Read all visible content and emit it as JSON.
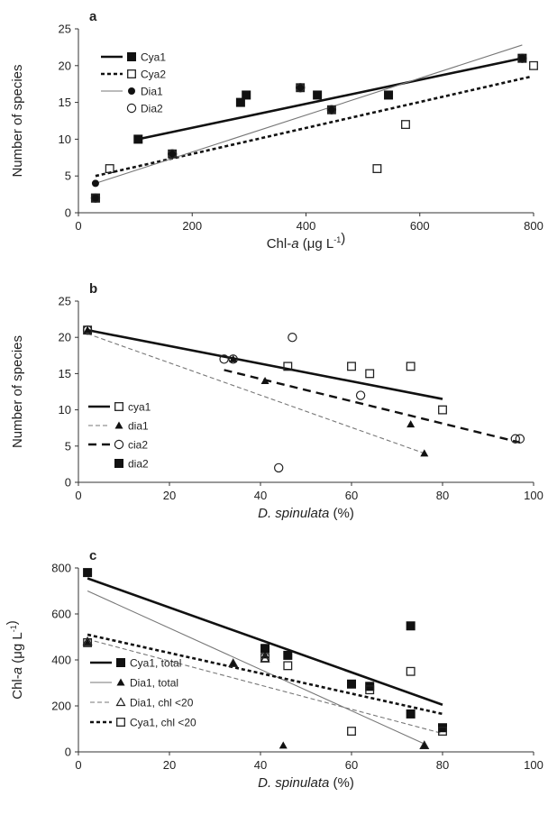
{
  "chart_data": [
    {
      "panel": "a",
      "type": "scatter",
      "xlabel": "Chl-a (μg L⁻¹)",
      "ylabel": "Number of species",
      "xlim": [
        0,
        800
      ],
      "ylim": [
        0,
        25
      ],
      "xticks": [
        0,
        200,
        400,
        600,
        800
      ],
      "yticks": [
        0,
        5,
        10,
        15,
        20,
        25
      ],
      "legend_position": "top-left",
      "series": [
        {
          "name": "Cya1",
          "marker": "filled-square",
          "line": "solid-thick",
          "x": [
            30,
            105,
            285,
            295,
            420,
            545,
            780
          ],
          "y": [
            2,
            10,
            15,
            16,
            16,
            16,
            21
          ],
          "fit": [
            [
              105,
              10
            ],
            [
              780,
              21
            ]
          ]
        },
        {
          "name": "Cya2",
          "marker": "open-square",
          "line": "dotted-thick",
          "x": [
            30,
            55,
            165,
            390,
            445,
            525,
            575,
            800
          ],
          "y": [
            2,
            6,
            8,
            17,
            14,
            6,
            12,
            20
          ],
          "fit": [
            [
              30,
              5
            ],
            [
              795,
              18.5
            ]
          ]
        },
        {
          "name": "Dia1",
          "marker": "filled-circle",
          "line": "solid-thin",
          "x": [
            30,
            165,
            390,
            445,
            780
          ],
          "y": [
            4,
            8,
            17,
            14,
            21
          ],
          "fit": [
            [
              30,
              4
            ],
            [
              780,
              22.8
            ]
          ]
        },
        {
          "name": "Dia2",
          "marker": "open-circle",
          "line": "none",
          "x": [
            30,
            165,
            390,
            445,
            780
          ],
          "y": [
            2,
            8,
            17,
            14,
            21
          ]
        }
      ]
    },
    {
      "panel": "b",
      "type": "scatter",
      "xlabel": "D. spinulata (%)",
      "ylabel": "Number of species",
      "xlim": [
        0,
        100
      ],
      "ylim": [
        0,
        25
      ],
      "xticks": [
        0,
        20,
        40,
        60,
        80,
        100
      ],
      "yticks": [
        0,
        5,
        10,
        15,
        20,
        25
      ],
      "legend_position": "bottom-left",
      "series": [
        {
          "name": "cya1",
          "marker": "open-square",
          "line": "solid-thick",
          "x": [
            2,
            46,
            60,
            64,
            73,
            80
          ],
          "y": [
            21,
            16,
            16,
            15,
            16,
            10
          ],
          "fit": [
            [
              2,
              21
            ],
            [
              80,
              11.5
            ]
          ]
        },
        {
          "name": "dia1",
          "marker": "filled-triangle",
          "line": "dashed-thin",
          "x": [
            2,
            34,
            41,
            73,
            76
          ],
          "y": [
            21,
            17,
            14,
            8,
            4
          ],
          "fit": [
            [
              2,
              20.5
            ],
            [
              76,
              4
            ]
          ]
        },
        {
          "name": "cia2",
          "marker": "open-circle",
          "line": "dashed-thick",
          "x": [
            2,
            32,
            34,
            44,
            47,
            62,
            96,
            97
          ],
          "y": [
            21,
            17,
            17,
            2,
            20,
            12,
            6,
            6
          ],
          "fit": [
            [
              32,
              15.5
            ],
            [
              97,
              5.5
            ]
          ]
        },
        {
          "name": "dia2",
          "marker": "filled-square",
          "line": "none",
          "x": [],
          "y": []
        }
      ]
    },
    {
      "panel": "c",
      "type": "scatter",
      "xlabel": "D. spinulata (%)",
      "ylabel": "Chl-a (μg L⁻¹)",
      "xlim": [
        0,
        100
      ],
      "ylim": [
        0,
        800
      ],
      "xticks": [
        0,
        20,
        40,
        60,
        80,
        100
      ],
      "yticks": [
        0,
        200,
        400,
        600,
        800
      ],
      "legend_position": "bottom-left",
      "series": [
        {
          "name": "Cya1, total",
          "marker": "filled-square",
          "line": "solid-thick",
          "x": [
            2,
            41,
            46,
            60,
            64,
            73,
            73,
            80
          ],
          "y": [
            780,
            450,
            420,
            295,
            285,
            165,
            548,
            105
          ],
          "fit": [
            [
              2,
              755
            ],
            [
              80,
              205
            ]
          ]
        },
        {
          "name": "Dia1, total",
          "marker": "filled-triangle",
          "line": "solid-thin",
          "x": [
            2,
            34,
            41,
            45,
            76
          ],
          "y": [
            475,
            385,
            420,
            28,
            28
          ],
          "fit": [
            [
              2,
              700
            ],
            [
              76,
              35
            ]
          ]
        },
        {
          "name": "Dia1, chl <20",
          "marker": "open-triangle",
          "line": "dashed-thin",
          "x": [
            2,
            34,
            41,
            76
          ],
          "y": [
            480,
            385,
            405,
            28
          ],
          "fit": [
            [
              2,
              490
            ],
            [
              80,
              80
            ]
          ]
        },
        {
          "name": "Cya1, chl <20",
          "marker": "open-square",
          "line": "dotted-thick",
          "x": [
            2,
            41,
            46,
            60,
            64,
            73,
            80
          ],
          "y": [
            475,
            410,
            375,
            90,
            270,
            350,
            90
          ],
          "fit": [
            [
              2,
              510
            ],
            [
              80,
              165
            ]
          ]
        }
      ]
    }
  ]
}
